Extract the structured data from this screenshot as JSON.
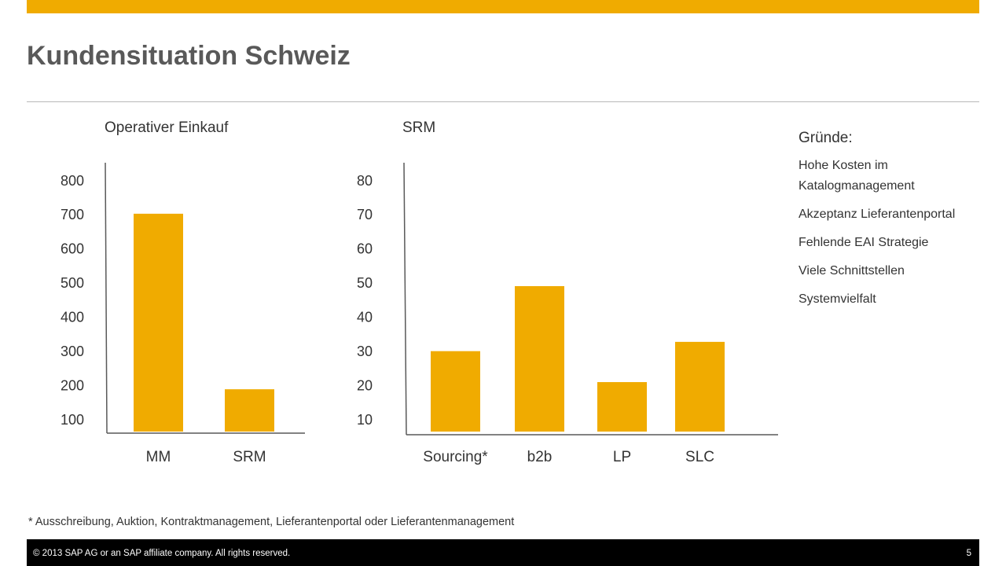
{
  "slide": {
    "title": "Kundensituation Schweiz",
    "brand_color": "#F0AB00",
    "footnote": "* Ausschreibung, Auktion, Kontraktmanagement, Lieferantenportal oder Lieferantenmanagement",
    "footer_copyright": "© 2013 SAP AG or an SAP affiliate company. All rights reserved.",
    "page_number": "5"
  },
  "reasons": {
    "title": "Gründe:",
    "items": [
      "Hohe Kosten im Katalogmanagement",
      "Akzeptanz Lieferantenportal",
      "Fehlende EAI Strategie",
      "Viele Schnittstellen",
      "Systemvielfalt"
    ]
  },
  "chart_data": [
    {
      "type": "bar",
      "title": "Operativer Einkauf",
      "categories": [
        "MM",
        "SRM"
      ],
      "values": [
        700,
        140
      ],
      "yticks": [
        100,
        200,
        300,
        400,
        500,
        600,
        700,
        800
      ],
      "ylim": [
        0,
        800
      ],
      "bar_color": "#F0AB00",
      "grid": false
    },
    {
      "type": "bar",
      "title": "SRM",
      "categories": [
        "Sourcing*",
        "b2b",
        "LP",
        "SLC"
      ],
      "values": [
        27,
        48,
        17,
        30
      ],
      "yticks": [
        10,
        20,
        30,
        40,
        50,
        60,
        70,
        80
      ],
      "ylim": [
        0,
        80
      ],
      "bar_color": "#F0AB00",
      "grid": false
    }
  ]
}
